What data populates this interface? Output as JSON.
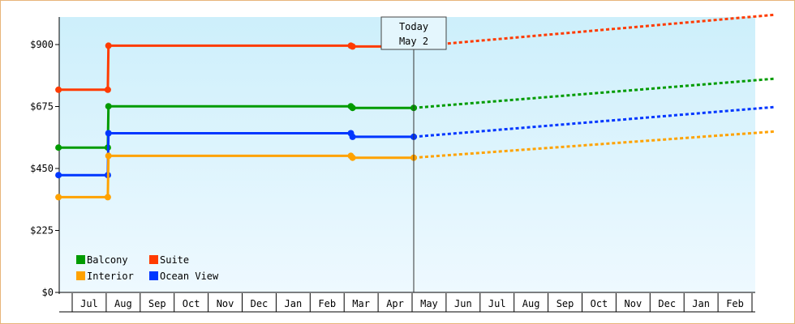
{
  "chart_data": {
    "type": "line",
    "title": "",
    "xlabel": "",
    "ylabel": "",
    "ylim": [
      0,
      1000
    ],
    "y_ticks": [
      0,
      225,
      450,
      675,
      900
    ],
    "y_tick_labels": [
      "$0",
      "$225",
      "$450",
      "$675",
      "$900"
    ],
    "months": [
      "Jul",
      "Aug",
      "Sep",
      "Oct",
      "Nov",
      "Dec",
      "Jan",
      "Feb",
      "Mar",
      "Apr",
      "May",
      "Jun",
      "Jul",
      "Aug",
      "Sep",
      "Oct",
      "Nov",
      "Dec",
      "Jan",
      "Feb"
    ],
    "today_label": [
      "Today",
      "May 2"
    ],
    "today_index": 10,
    "background": "light-blue gradient",
    "series": [
      {
        "name": "Suite",
        "color": "#ff3b00",
        "history": [
          [
            -0.45,
            736
          ],
          [
            1,
            736
          ],
          [
            1.02,
            896
          ],
          [
            8.15,
            896
          ],
          [
            8.2,
            893
          ],
          [
            10.0,
            893
          ]
        ],
        "forecast": [
          [
            10.0,
            893
          ],
          [
            20.6,
            1008
          ]
        ]
      },
      {
        "name": "Balcony",
        "color": "#009b00",
        "history": [
          [
            -0.45,
            526
          ],
          [
            1,
            526
          ],
          [
            1.02,
            676
          ],
          [
            8.15,
            676
          ],
          [
            8.2,
            670
          ],
          [
            10.0,
            670
          ]
        ],
        "forecast": [
          [
            10.0,
            670
          ],
          [
            20.6,
            776
          ]
        ]
      },
      {
        "name": "Ocean View",
        "color": "#0036ff",
        "history": [
          [
            -0.45,
            426
          ],
          [
            1,
            426
          ],
          [
            1.02,
            578
          ],
          [
            8.15,
            578
          ],
          [
            8.2,
            565
          ],
          [
            10.0,
            565
          ]
        ],
        "forecast": [
          [
            10.0,
            565
          ],
          [
            20.6,
            673
          ]
        ]
      },
      {
        "name": "Interior",
        "color": "#ffa200",
        "history": [
          [
            -0.45,
            346
          ],
          [
            1,
            346
          ],
          [
            1.02,
            496
          ],
          [
            8.15,
            496
          ],
          [
            8.2,
            489
          ],
          [
            10.0,
            489
          ]
        ],
        "forecast": [
          [
            10.0,
            489
          ],
          [
            20.6,
            584
          ]
        ]
      }
    ],
    "legend": [
      {
        "name": "Balcony",
        "color": "#009b00"
      },
      {
        "name": "Suite",
        "color": "#ff3b00"
      },
      {
        "name": "Interior",
        "color": "#ffa200"
      },
      {
        "name": "Ocean View",
        "color": "#0036ff"
      }
    ],
    "legend_position": "bottom-left"
  }
}
